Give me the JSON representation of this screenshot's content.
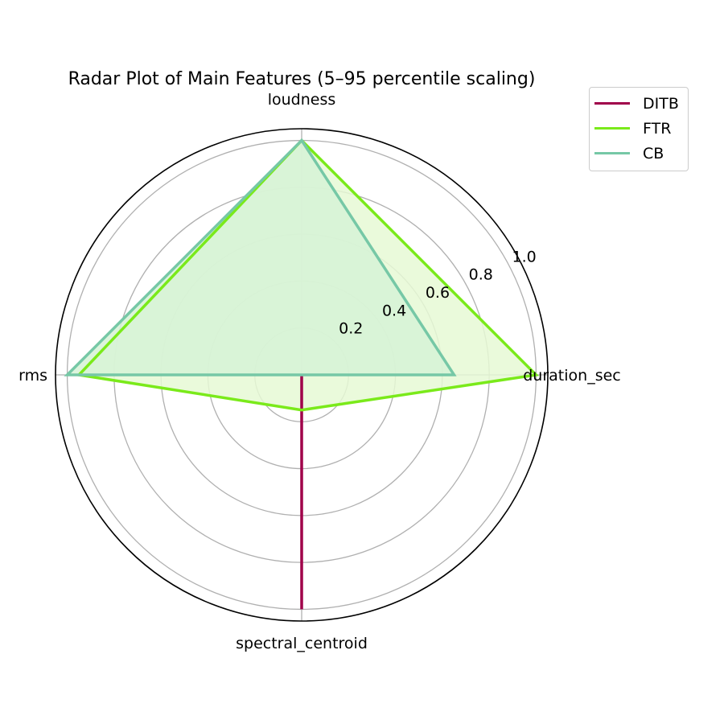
{
  "chart_data": {
    "type": "radar",
    "title": "Radar Plot of Main Features (5–95 percentile scaling)",
    "axes": [
      "loudness",
      "duration_sec",
      "spectral_centroid",
      "rms"
    ],
    "radial_ticks": [
      "0.2",
      "0.4",
      "0.6",
      "0.8",
      "1.0"
    ],
    "rlim": [
      0,
      1.05
    ],
    "grid": true,
    "legend_position": "upper right, outside plot",
    "series": [
      {
        "name": "DITB",
        "color": "#a0004a",
        "fill": false,
        "values": [
          0.0,
          0.0,
          1.0,
          0.0
        ]
      },
      {
        "name": "FTR",
        "color": "#7aea1a",
        "fill": true,
        "fill_color": "#e6f9d5",
        "values": [
          1.0,
          1.0,
          0.15,
          0.95
        ]
      },
      {
        "name": "CB",
        "color": "#76c8a6",
        "fill": true,
        "fill_color": "#d6f2d6",
        "values": [
          1.0,
          0.65,
          0.0,
          1.0
        ]
      }
    ]
  }
}
